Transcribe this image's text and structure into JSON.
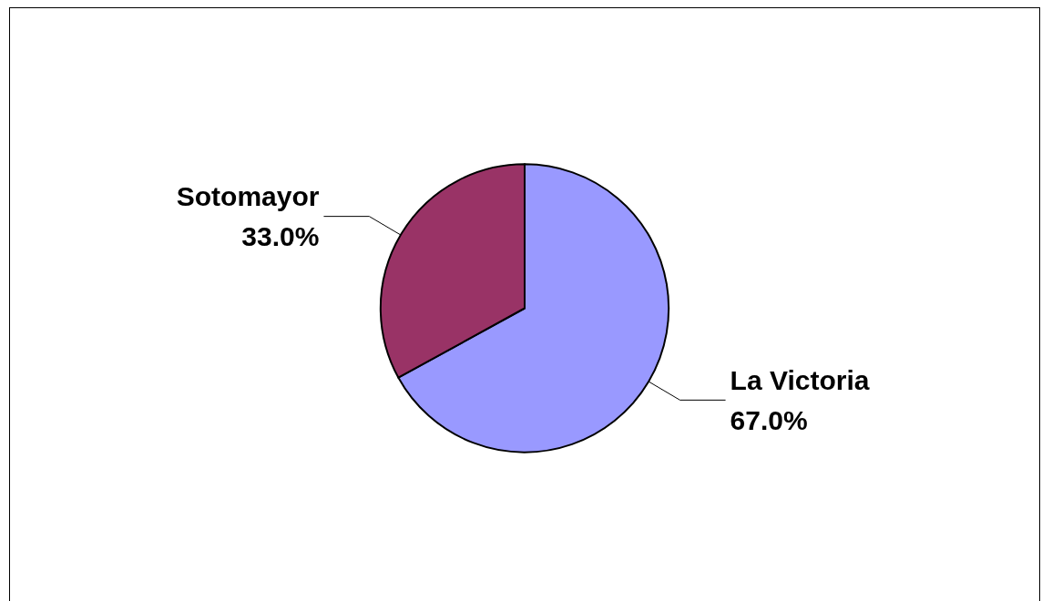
{
  "chart_data": {
    "type": "pie",
    "categories": [
      "La Victoria",
      "Sotomayor"
    ],
    "values": [
      67.0,
      33.0
    ],
    "colors": [
      "#9999ff",
      "#993366"
    ],
    "value_labels": [
      "67.0%",
      "33.0%"
    ],
    "legend": false
  }
}
